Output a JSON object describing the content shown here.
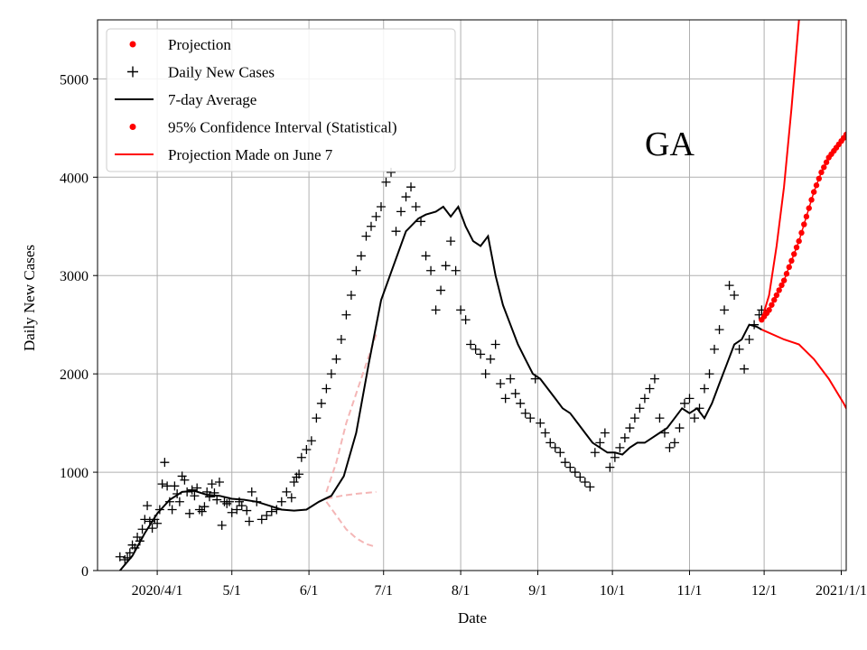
{
  "chart_data": {
    "type": "line",
    "state_label": "GA",
    "xlabel": "Date",
    "ylabel": "Daily New Cases",
    "ylim": [
      0,
      5600
    ],
    "xlim_days": [
      -24,
      277
    ],
    "yticks": [
      0,
      1000,
      2000,
      3000,
      4000,
      5000
    ],
    "xticks": [
      {
        "day": 0,
        "label": "2020/4/1"
      },
      {
        "day": 30,
        "label": "5/1"
      },
      {
        "day": 61,
        "label": "6/1"
      },
      {
        "day": 91,
        "label": "7/1"
      },
      {
        "day": 122,
        "label": "8/1"
      },
      {
        "day": 153,
        "label": "9/1"
      },
      {
        "day": 183,
        "label": "10/1"
      },
      {
        "day": 214,
        "label": "11/1"
      },
      {
        "day": 244,
        "label": "12/1"
      },
      {
        "day": 275,
        "label": "2021/1/1"
      }
    ],
    "legend": {
      "placement": "top-left",
      "entries": [
        {
          "label": "Projection",
          "marker": "dot",
          "color": "#ff0000"
        },
        {
          "label": "Daily New Cases",
          "marker": "plus",
          "color": "#000000"
        },
        {
          "label": "7-day Average",
          "marker": "line",
          "color": "#000000"
        },
        {
          "label": "95% Confidence Interval (Statistical)",
          "marker": "dot",
          "color": "#ff0000"
        },
        {
          "label": "Projection Made on June 7",
          "marker": "line",
          "color": "#ff0000"
        }
      ]
    },
    "series": [
      {
        "name": "7-day Average",
        "color": "#000000",
        "points": [
          [
            -15,
            0
          ],
          [
            -10,
            150
          ],
          [
            -5,
            380
          ],
          [
            0,
            580
          ],
          [
            5,
            720
          ],
          [
            10,
            800
          ],
          [
            15,
            810
          ],
          [
            20,
            770
          ],
          [
            25,
            760
          ],
          [
            30,
            730
          ],
          [
            35,
            720
          ],
          [
            40,
            700
          ],
          [
            45,
            660
          ],
          [
            50,
            620
          ],
          [
            55,
            610
          ],
          [
            60,
            620
          ],
          [
            65,
            700
          ],
          [
            70,
            760
          ],
          [
            75,
            960
          ],
          [
            80,
            1400
          ],
          [
            85,
            2100
          ],
          [
            90,
            2750
          ],
          [
            95,
            3100
          ],
          [
            100,
            3450
          ],
          [
            105,
            3580
          ],
          [
            108,
            3620
          ],
          [
            112,
            3650
          ],
          [
            115,
            3700
          ],
          [
            118,
            3600
          ],
          [
            121,
            3700
          ],
          [
            124,
            3500
          ],
          [
            127,
            3350
          ],
          [
            130,
            3300
          ],
          [
            133,
            3400
          ],
          [
            136,
            3000
          ],
          [
            139,
            2700
          ],
          [
            142,
            2500
          ],
          [
            145,
            2300
          ],
          [
            148,
            2150
          ],
          [
            151,
            2000
          ],
          [
            154,
            1950
          ],
          [
            157,
            1850
          ],
          [
            160,
            1750
          ],
          [
            163,
            1650
          ],
          [
            166,
            1600
          ],
          [
            169,
            1500
          ],
          [
            172,
            1400
          ],
          [
            175,
            1300
          ],
          [
            178,
            1250
          ],
          [
            181,
            1200
          ],
          [
            184,
            1200
          ],
          [
            187,
            1180
          ],
          [
            190,
            1250
          ],
          [
            193,
            1300
          ],
          [
            196,
            1300
          ],
          [
            199,
            1350
          ],
          [
            202,
            1400
          ],
          [
            205,
            1450
          ],
          [
            208,
            1550
          ],
          [
            211,
            1650
          ],
          [
            214,
            1600
          ],
          [
            217,
            1650
          ],
          [
            220,
            1550
          ],
          [
            223,
            1700
          ],
          [
            226,
            1900
          ],
          [
            229,
            2100
          ],
          [
            232,
            2300
          ],
          [
            235,
            2350
          ],
          [
            238,
            2500
          ],
          [
            241,
            2480
          ],
          [
            243,
            2450
          ]
        ]
      },
      {
        "name": "Daily New Cases",
        "color": "#000000",
        "points": [
          [
            -15,
            140
          ],
          [
            -13,
            110
          ],
          [
            -12,
            130
          ],
          [
            -11,
            180
          ],
          [
            -10,
            260
          ],
          [
            -9,
            230
          ],
          [
            -8,
            340
          ],
          [
            -7,
            300
          ],
          [
            -6,
            420
          ],
          [
            -5,
            520
          ],
          [
            -4,
            660
          ],
          [
            -3,
            500
          ],
          [
            -2,
            430
          ],
          [
            -1,
            520
          ],
          [
            0,
            480
          ],
          [
            1,
            620
          ],
          [
            2,
            880
          ],
          [
            3,
            1100
          ],
          [
            4,
            860
          ],
          [
            5,
            700
          ],
          [
            6,
            620
          ],
          [
            7,
            860
          ],
          [
            8,
            780
          ],
          [
            9,
            700
          ],
          [
            10,
            960
          ],
          [
            11,
            920
          ],
          [
            12,
            800
          ],
          [
            13,
            580
          ],
          [
            14,
            820
          ],
          [
            15,
            760
          ],
          [
            16,
            840
          ],
          [
            17,
            620
          ],
          [
            18,
            600
          ],
          [
            19,
            650
          ],
          [
            20,
            800
          ],
          [
            21,
            750
          ],
          [
            22,
            880
          ],
          [
            23,
            790
          ],
          [
            24,
            720
          ],
          [
            25,
            900
          ],
          [
            26,
            460
          ],
          [
            27,
            700
          ],
          [
            28,
            680
          ],
          [
            29,
            700
          ],
          [
            30,
            590
          ],
          [
            32,
            620
          ],
          [
            33,
            700
          ],
          [
            34,
            660
          ],
          [
            36,
            610
          ],
          [
            37,
            500
          ],
          [
            38,
            800
          ],
          [
            40,
            700
          ],
          [
            42,
            520
          ],
          [
            44,
            560
          ],
          [
            46,
            600
          ],
          [
            48,
            620
          ],
          [
            50,
            700
          ],
          [
            52,
            800
          ],
          [
            54,
            740
          ],
          [
            55,
            900
          ],
          [
            56,
            950
          ],
          [
            57,
            980
          ],
          [
            58,
            1150
          ],
          [
            60,
            1230
          ],
          [
            62,
            1320
          ],
          [
            64,
            1550
          ],
          [
            66,
            1700
          ],
          [
            68,
            1850
          ],
          [
            70,
            2000
          ],
          [
            72,
            2150
          ],
          [
            74,
            2350
          ],
          [
            76,
            2600
          ],
          [
            78,
            2800
          ],
          [
            80,
            3050
          ],
          [
            82,
            3200
          ],
          [
            84,
            3400
          ],
          [
            86,
            3500
          ],
          [
            88,
            3600
          ],
          [
            90,
            3700
          ],
          [
            92,
            3950
          ],
          [
            94,
            4050
          ],
          [
            96,
            3450
          ],
          [
            98,
            3650
          ],
          [
            100,
            3800
          ],
          [
            102,
            3900
          ],
          [
            104,
            3700
          ],
          [
            106,
            3550
          ],
          [
            108,
            3200
          ],
          [
            110,
            3050
          ],
          [
            112,
            2650
          ],
          [
            114,
            2850
          ],
          [
            116,
            3100
          ],
          [
            118,
            3350
          ],
          [
            120,
            3050
          ],
          [
            122,
            2650
          ],
          [
            124,
            2550
          ],
          [
            126,
            2300
          ],
          [
            128,
            2250
          ],
          [
            130,
            2200
          ],
          [
            132,
            2000
          ],
          [
            134,
            2150
          ],
          [
            136,
            2300
          ],
          [
            138,
            1900
          ],
          [
            140,
            1750
          ],
          [
            142,
            1950
          ],
          [
            144,
            1800
          ],
          [
            146,
            1700
          ],
          [
            148,
            1600
          ],
          [
            150,
            1550
          ],
          [
            152,
            1950
          ],
          [
            154,
            1500
          ],
          [
            156,
            1400
          ],
          [
            158,
            1300
          ],
          [
            160,
            1250
          ],
          [
            162,
            1200
          ],
          [
            164,
            1100
          ],
          [
            166,
            1050
          ],
          [
            168,
            1000
          ],
          [
            170,
            950
          ],
          [
            172,
            900
          ],
          [
            174,
            850
          ],
          [
            176,
            1200
          ],
          [
            178,
            1300
          ],
          [
            180,
            1400
          ],
          [
            182,
            1050
          ],
          [
            184,
            1150
          ],
          [
            186,
            1250
          ],
          [
            188,
            1350
          ],
          [
            190,
            1450
          ],
          [
            192,
            1550
          ],
          [
            194,
            1650
          ],
          [
            196,
            1750
          ],
          [
            198,
            1850
          ],
          [
            200,
            1950
          ],
          [
            202,
            1550
          ],
          [
            204,
            1400
          ],
          [
            206,
            1250
          ],
          [
            208,
            1300
          ],
          [
            210,
            1450
          ],
          [
            212,
            1700
          ],
          [
            214,
            1750
          ],
          [
            216,
            1550
          ],
          [
            218,
            1650
          ],
          [
            220,
            1850
          ],
          [
            222,
            2000
          ],
          [
            224,
            2250
          ],
          [
            226,
            2450
          ],
          [
            228,
            2650
          ],
          [
            230,
            2900
          ],
          [
            232,
            2800
          ],
          [
            234,
            2250
          ],
          [
            236,
            2050
          ],
          [
            238,
            2350
          ],
          [
            240,
            2500
          ],
          [
            242,
            2600
          ],
          [
            243,
            2650
          ]
        ]
      },
      {
        "name": "Projection",
        "color": "#ff0000",
        "points": [
          [
            243,
            2550
          ],
          [
            246,
            2650
          ],
          [
            249,
            2800
          ],
          [
            252,
            2950
          ],
          [
            255,
            3150
          ],
          [
            258,
            3350
          ],
          [
            261,
            3600
          ],
          [
            264,
            3850
          ],
          [
            267,
            4050
          ],
          [
            270,
            4200
          ],
          [
            273,
            4300
          ],
          [
            276,
            4400
          ],
          [
            279,
            4500
          ],
          [
            282,
            4620
          ],
          [
            285,
            4680
          ],
          [
            288,
            4690
          ],
          [
            291,
            4680
          ],
          [
            294,
            4660
          ],
          [
            297,
            4640
          ],
          [
            300,
            4620
          ],
          [
            302,
            4570
          ],
          [
            304,
            4480
          ],
          [
            306,
            4330
          ]
        ]
      },
      {
        "name": "Projection Made on June 7 (upper)",
        "color": "#ff0000",
        "points": [
          [
            243,
            2550
          ],
          [
            246,
            2800
          ],
          [
            249,
            3300
          ],
          [
            252,
            3900
          ],
          [
            255,
            4700
          ],
          [
            258,
            5600
          ]
        ]
      },
      {
        "name": "Projection Made on June 7 (lower)",
        "color": "#ff0000",
        "points": [
          [
            243,
            2450
          ],
          [
            252,
            2350
          ],
          [
            258,
            2300
          ],
          [
            264,
            2150
          ],
          [
            270,
            1950
          ],
          [
            276,
            1700
          ],
          [
            282,
            1400
          ],
          [
            288,
            1150
          ],
          [
            294,
            950
          ],
          [
            297,
            870
          ],
          [
            300,
            860
          ],
          [
            306,
            850
          ]
        ]
      },
      {
        "name": "Early Projection Band (upper)",
        "color": "#f4b6b6",
        "points": [
          [
            68,
            800
          ],
          [
            72,
            1100
          ],
          [
            76,
            1500
          ],
          [
            80,
            1800
          ],
          [
            84,
            2100
          ],
          [
            88,
            2400
          ]
        ]
      },
      {
        "name": "Early Projection Band (middle)",
        "color": "#f4b6b6",
        "points": [
          [
            68,
            730
          ],
          [
            74,
            760
          ],
          [
            80,
            780
          ],
          [
            88,
            800
          ]
        ]
      },
      {
        "name": "Early Projection Band (lower)",
        "color": "#f4b6b6",
        "points": [
          [
            68,
            700
          ],
          [
            72,
            560
          ],
          [
            76,
            420
          ],
          [
            80,
            330
          ],
          [
            84,
            270
          ],
          [
            88,
            240
          ]
        ]
      }
    ]
  }
}
